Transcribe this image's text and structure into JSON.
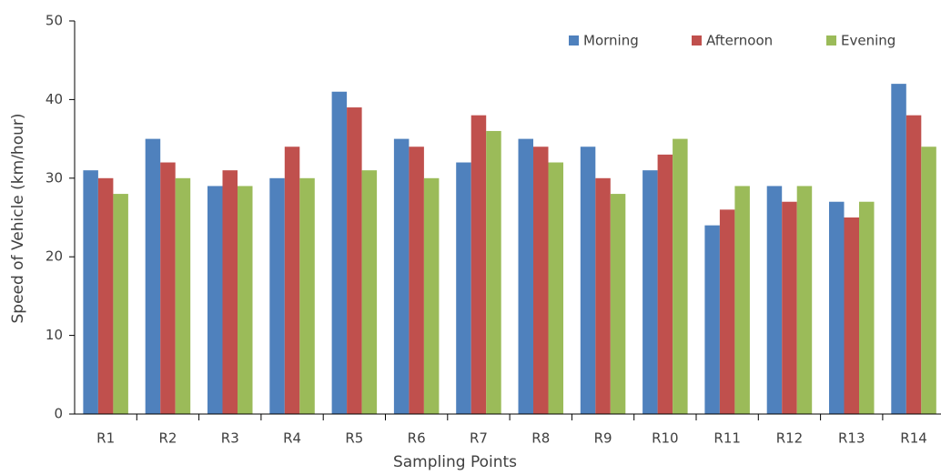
{
  "chart_data": {
    "type": "bar",
    "categories": [
      "R1",
      "R2",
      "R3",
      "R4",
      "R5",
      "R6",
      "R7",
      "R8",
      "R9",
      "R10",
      "R11",
      "R12",
      "R13",
      "R14"
    ],
    "series": [
      {
        "name": "Morning",
        "color": "#4f81bd",
        "values": [
          31,
          35,
          29,
          30,
          41,
          35,
          32,
          35,
          34,
          31,
          24,
          29,
          27,
          42
        ]
      },
      {
        "name": "Afternoon",
        "color": "#c0504d",
        "values": [
          30,
          32,
          31,
          34,
          39,
          34,
          38,
          34,
          30,
          33,
          26,
          27,
          25,
          38
        ]
      },
      {
        "name": "Evening",
        "color": "#9bbb59",
        "values": [
          28,
          30,
          29,
          30,
          31,
          30,
          36,
          32,
          28,
          35,
          29,
          29,
          27,
          34
        ]
      }
    ],
    "x_label": "Sampling Points",
    "y_label": "Speed of Vehicle (km/hour)",
    "ylim": [
      0,
      50
    ],
    "yticks": [
      0,
      10,
      20,
      30,
      40,
      50
    ],
    "legend": "top-right",
    "grid": false
  }
}
